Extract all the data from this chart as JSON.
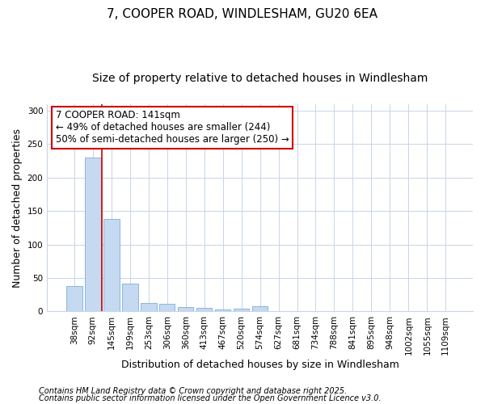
{
  "title": "7, COOPER ROAD, WINDLESHAM, GU20 6EA",
  "subtitle": "Size of property relative to detached houses in Windlesham",
  "xlabel": "Distribution of detached houses by size in Windlesham",
  "ylabel": "Number of detached properties",
  "bar_labels": [
    "38sqm",
    "92sqm",
    "145sqm",
    "199sqm",
    "253sqm",
    "306sqm",
    "360sqm",
    "413sqm",
    "467sqm",
    "520sqm",
    "574sqm",
    "627sqm",
    "681sqm",
    "734sqm",
    "788sqm",
    "841sqm",
    "895sqm",
    "948sqm",
    "1002sqm",
    "1055sqm",
    "1109sqm"
  ],
  "bar_values": [
    38,
    230,
    138,
    42,
    13,
    12,
    7,
    5,
    3,
    4,
    8,
    1,
    1,
    0,
    0,
    0,
    0,
    0,
    0,
    0,
    1
  ],
  "bar_color": "#c5d9f1",
  "bar_edge_color": "#7dadd9",
  "vline_color": "#cc0000",
  "ylim": [
    0,
    310
  ],
  "yticks": [
    0,
    50,
    100,
    150,
    200,
    250,
    300
  ],
  "annotation_title": "7 COOPER ROAD: 141sqm",
  "annotation_line1": "← 49% of detached houses are smaller (244)",
  "annotation_line2": "50% of semi-detached houses are larger (250) →",
  "annotation_box_color": "#cc0000",
  "footer1": "Contains HM Land Registry data © Crown copyright and database right 2025.",
  "footer2": "Contains public sector information licensed under the Open Government Licence v3.0.",
  "bg_color": "#ffffff",
  "grid_color": "#c8d4e8",
  "title_fontsize": 11,
  "subtitle_fontsize": 10,
  "axis_label_fontsize": 9,
  "tick_fontsize": 7.5,
  "annotation_fontsize": 8.5,
  "footer_fontsize": 7
}
